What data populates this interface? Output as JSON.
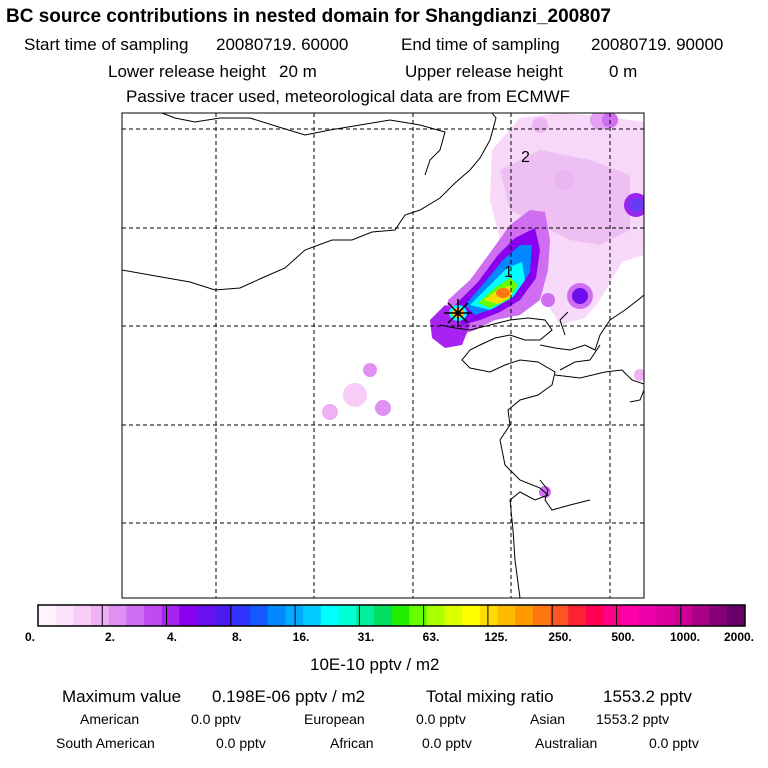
{
  "header": {
    "title": "BC  source contributions in nested domain for Shangdianzi_200807",
    "start_label": "Start time of sampling",
    "start_value": "20080719. 60000",
    "end_label": "End time of sampling",
    "end_value": "20080719. 90000",
    "lower_label": "Lower release height",
    "lower_value": "20 m",
    "upper_label": "Upper release height",
    "upper_value": "0 m",
    "note": "Passive tracer used, meteorological data are from ECMWF"
  },
  "map": {
    "markers": [
      {
        "label": "1"
      },
      {
        "label": "2"
      }
    ],
    "receptor_symbol": "×"
  },
  "colorbar": {
    "labels": [
      "0.",
      "2.",
      "4.",
      "8.",
      "16.",
      "31.",
      "63.",
      "125.",
      "250.",
      "500.",
      "1000.",
      "2000."
    ],
    "colors": [
      "#fef4fe",
      "#fce4fc",
      "#f8ccf8",
      "#f0b0f4",
      "#e090f0",
      "#cf6ef0",
      "#bf4cf2",
      "#a822f2",
      "#8800ee",
      "#6a10f0",
      "#4a1cf2",
      "#3333ff",
      "#1458ff",
      "#0088ff",
      "#00aaff",
      "#00ccff",
      "#00ffff",
      "#00ffd8",
      "#00f0a0",
      "#00e060",
      "#22ee00",
      "#66ff00",
      "#aaff00",
      "#ddff00",
      "#ffff00",
      "#ffdd00",
      "#ffbb00",
      "#ff9900",
      "#ff7711",
      "#ff5522",
      "#ff2233",
      "#ff0055",
      "#ff0088",
      "#ff00aa",
      "#ee00aa",
      "#dd00a0",
      "#cc0099",
      "#aa0088",
      "#880077",
      "#660066"
    ],
    "unit": "10E-10 pptv / m2"
  },
  "stats": {
    "max_label": "Maximum value",
    "max_value": "0.198E-06 pptv / m2",
    "total_label": "Total mixing ratio",
    "total_value": "1553.2 pptv",
    "regions": [
      {
        "name": "American",
        "value": "0.0 pptv"
      },
      {
        "name": "European",
        "value": "0.0 pptv"
      },
      {
        "name": "Asian",
        "value": "1553.2 pptv"
      },
      {
        "name": "South American",
        "value": "0.0 pptv"
      },
      {
        "name": "African",
        "value": "0.0 pptv"
      },
      {
        "name": "Australian",
        "value": "0.0 pptv"
      }
    ]
  }
}
